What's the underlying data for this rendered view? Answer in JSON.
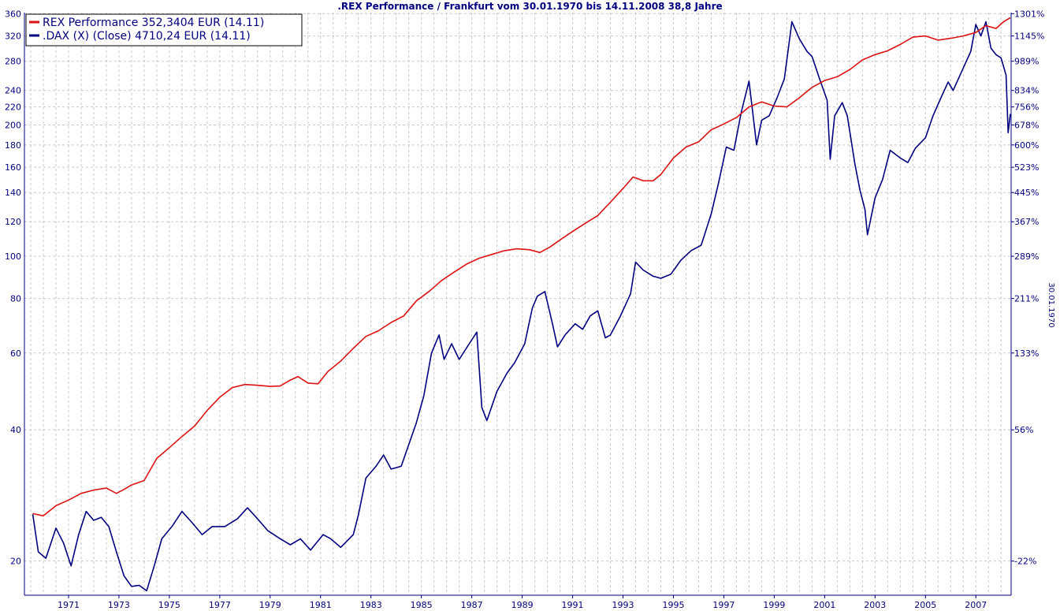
{
  "chart_data": {
    "type": "line",
    "title": ".REX Performance / Frankfurt vom 30.01.1970 bis 14.11.2008 38,8 Jahre",
    "right_axis_label": "30.01.1970",
    "y_scale": "log",
    "ylim": [
      16.7,
      362
    ],
    "xlim": [
      1969.75,
      2008.9
    ],
    "grid": true,
    "legend_position": "top-left",
    "y_ticks_left": [
      "360",
      "320",
      "280",
      "240",
      "220",
      "200",
      "180",
      "160",
      "140",
      "120",
      "100",
      "80",
      "60",
      "40",
      "20"
    ],
    "y_ticks_right": [
      "1301%",
      "1145%",
      "989%",
      "834%",
      "756%",
      "678%",
      "600%",
      "523%",
      "445%",
      "367%",
      "289%",
      "211%",
      "133%",
      "56%",
      "-22%"
    ],
    "x_ticks": [
      "1971",
      "1973",
      "1975",
      "1977",
      "1979",
      "1981",
      "1983",
      "1985",
      "1987",
      "1989",
      "1991",
      "1993",
      "1995",
      "1997",
      "1999",
      "2001",
      "2003",
      "2005",
      "2007"
    ],
    "series": [
      {
        "name": "REX Performance 352,3404 EUR (14.11)",
        "color": "#dd1111",
        "points": [
          [
            1970.08,
            25.7
          ],
          [
            1970.5,
            25.4
          ],
          [
            1971.0,
            26.8
          ],
          [
            1971.5,
            27.6
          ],
          [
            1972.0,
            28.6
          ],
          [
            1972.5,
            29.1
          ],
          [
            1973.0,
            29.4
          ],
          [
            1973.4,
            28.6
          ],
          [
            1973.7,
            29.2
          ],
          [
            1974.0,
            29.9
          ],
          [
            1974.5,
            30.6
          ],
          [
            1975.0,
            34.4
          ],
          [
            1975.5,
            36.4
          ],
          [
            1976.0,
            38.6
          ],
          [
            1976.5,
            40.8
          ],
          [
            1977.0,
            44.3
          ],
          [
            1977.5,
            47.5
          ],
          [
            1978.0,
            50.0
          ],
          [
            1978.5,
            50.8
          ],
          [
            1979.0,
            50.6
          ],
          [
            1979.5,
            50.3
          ],
          [
            1979.9,
            50.4
          ],
          [
            1980.3,
            52.0
          ],
          [
            1980.6,
            53.0
          ],
          [
            1981.0,
            51.2
          ],
          [
            1981.4,
            51.0
          ],
          [
            1981.8,
            54.5
          ],
          [
            1982.3,
            57.5
          ],
          [
            1982.8,
            61.5
          ],
          [
            1983.3,
            65.5
          ],
          [
            1983.8,
            67.5
          ],
          [
            1984.3,
            70.5
          ],
          [
            1984.8,
            73.0
          ],
          [
            1985.3,
            79.0
          ],
          [
            1985.8,
            83.0
          ],
          [
            1986.3,
            88.0
          ],
          [
            1986.8,
            92.0
          ],
          [
            1987.3,
            96.0
          ],
          [
            1987.8,
            99.0
          ],
          [
            1988.3,
            101.0
          ],
          [
            1988.8,
            103.0
          ],
          [
            1989.3,
            104.0
          ],
          [
            1989.8,
            103.5
          ],
          [
            1990.2,
            102.0
          ],
          [
            1990.6,
            105.0
          ],
          [
            1991.0,
            109.0
          ],
          [
            1991.5,
            114.0
          ],
          [
            1992.0,
            119.0
          ],
          [
            1992.5,
            124.0
          ],
          [
            1993.0,
            133.0
          ],
          [
            1993.5,
            143.0
          ],
          [
            1993.9,
            152.0
          ],
          [
            1994.3,
            149.0
          ],
          [
            1994.7,
            149.0
          ],
          [
            1995.0,
            154.0
          ],
          [
            1995.5,
            168.0
          ],
          [
            1996.0,
            178.0
          ],
          [
            1996.5,
            183.0
          ],
          [
            1997.0,
            195.0
          ],
          [
            1997.5,
            201.0
          ],
          [
            1998.0,
            208.0
          ],
          [
            1998.5,
            220.0
          ],
          [
            1999.0,
            226.0
          ],
          [
            1999.5,
            221.0
          ],
          [
            2000.0,
            220.0
          ],
          [
            2000.5,
            231.0
          ],
          [
            2001.0,
            244.0
          ],
          [
            2001.5,
            253.0
          ],
          [
            2002.0,
            258.0
          ],
          [
            2002.5,
            268.0
          ],
          [
            2003.0,
            282.0
          ],
          [
            2003.5,
            290.0
          ],
          [
            2004.0,
            296.0
          ],
          [
            2004.5,
            306.0
          ],
          [
            2005.0,
            318.0
          ],
          [
            2005.5,
            320.0
          ],
          [
            2006.0,
            313.0
          ],
          [
            2006.5,
            316.0
          ],
          [
            2007.0,
            320.0
          ],
          [
            2007.5,
            326.0
          ],
          [
            2007.9,
            338.0
          ],
          [
            2008.3,
            333.0
          ],
          [
            2008.6,
            345.0
          ],
          [
            2008.87,
            352.3
          ]
        ]
      },
      {
        "name": ".DAX (X) (Close) 4710,24 EUR (14.11)",
        "color": "#000080",
        "points": [
          [
            1970.08,
            25.6
          ],
          [
            1970.3,
            21.0
          ],
          [
            1970.6,
            20.3
          ],
          [
            1971.0,
            23.8
          ],
          [
            1971.3,
            22.0
          ],
          [
            1971.6,
            19.5
          ],
          [
            1971.9,
            23.0
          ],
          [
            1972.2,
            26.0
          ],
          [
            1972.5,
            24.8
          ],
          [
            1972.8,
            25.2
          ],
          [
            1973.1,
            24.0
          ],
          [
            1973.4,
            21.0
          ],
          [
            1973.7,
            18.5
          ],
          [
            1974.0,
            17.5
          ],
          [
            1974.3,
            17.6
          ],
          [
            1974.6,
            17.1
          ],
          [
            1974.9,
            19.5
          ],
          [
            1975.2,
            22.5
          ],
          [
            1975.6,
            24.0
          ],
          [
            1976.0,
            26.0
          ],
          [
            1976.4,
            24.5
          ],
          [
            1976.8,
            23.0
          ],
          [
            1977.2,
            24.0
          ],
          [
            1977.7,
            24.0
          ],
          [
            1978.2,
            25.0
          ],
          [
            1978.6,
            26.5
          ],
          [
            1979.0,
            25.0
          ],
          [
            1979.4,
            23.5
          ],
          [
            1979.9,
            22.5
          ],
          [
            1980.3,
            21.8
          ],
          [
            1980.7,
            22.5
          ],
          [
            1981.1,
            21.2
          ],
          [
            1981.6,
            23.0
          ],
          [
            1981.9,
            22.5
          ],
          [
            1982.3,
            21.5
          ],
          [
            1982.8,
            23.0
          ],
          [
            1983.0,
            25.5
          ],
          [
            1983.3,
            31.0
          ],
          [
            1983.7,
            33.0
          ],
          [
            1984.0,
            35.0
          ],
          [
            1984.3,
            32.5
          ],
          [
            1984.7,
            33.0
          ],
          [
            1985.0,
            37.0
          ],
          [
            1985.3,
            41.5
          ],
          [
            1985.6,
            48.0
          ],
          [
            1985.9,
            60.0
          ],
          [
            1986.2,
            66.0
          ],
          [
            1986.4,
            58.0
          ],
          [
            1986.7,
            63.0
          ],
          [
            1987.0,
            58.0
          ],
          [
            1987.4,
            63.0
          ],
          [
            1987.7,
            67.0
          ],
          [
            1987.9,
            45.0
          ],
          [
            1988.1,
            42.0
          ],
          [
            1988.5,
            49.0
          ],
          [
            1988.9,
            54.0
          ],
          [
            1989.2,
            57.0
          ],
          [
            1989.6,
            63.0
          ],
          [
            1989.9,
            76.0
          ],
          [
            1990.1,
            81.0
          ],
          [
            1990.4,
            83.0
          ],
          [
            1990.7,
            70.0
          ],
          [
            1990.9,
            62.0
          ],
          [
            1991.2,
            66.0
          ],
          [
            1991.6,
            70.0
          ],
          [
            1991.9,
            68.0
          ],
          [
            1992.2,
            73.0
          ],
          [
            1992.5,
            75.0
          ],
          [
            1992.8,
            65.0
          ],
          [
            1993.0,
            66.0
          ],
          [
            1993.4,
            73.0
          ],
          [
            1993.8,
            82.0
          ],
          [
            1994.0,
            97.0
          ],
          [
            1994.3,
            93.0
          ],
          [
            1994.7,
            90.0
          ],
          [
            1995.0,
            89.0
          ],
          [
            1995.4,
            91.0
          ],
          [
            1995.8,
            98.0
          ],
          [
            1996.2,
            103.0
          ],
          [
            1996.6,
            106.0
          ],
          [
            1997.0,
            125.0
          ],
          [
            1997.3,
            148.0
          ],
          [
            1997.6,
            178.0
          ],
          [
            1997.9,
            175.0
          ],
          [
            1998.2,
            215.0
          ],
          [
            1998.5,
            252.0
          ],
          [
            1998.8,
            180.0
          ],
          [
            1999.0,
            205.0
          ],
          [
            1999.3,
            210.0
          ],
          [
            1999.6,
            230.0
          ],
          [
            1999.9,
            255.0
          ],
          [
            2000.2,
            345.0
          ],
          [
            2000.5,
            315.0
          ],
          [
            2000.8,
            295.0
          ],
          [
            2001.0,
            287.0
          ],
          [
            2001.3,
            255.0
          ],
          [
            2001.6,
            228.0
          ],
          [
            2001.72,
            167.0
          ],
          [
            2001.9,
            210.0
          ],
          [
            2002.2,
            225.0
          ],
          [
            2002.4,
            210.0
          ],
          [
            2002.7,
            163.0
          ],
          [
            2002.9,
            142.0
          ],
          [
            2003.1,
            128.0
          ],
          [
            2003.2,
            112.0
          ],
          [
            2003.5,
            136.0
          ],
          [
            2003.8,
            150.0
          ],
          [
            2004.1,
            175.0
          ],
          [
            2004.5,
            168.0
          ],
          [
            2004.8,
            164.0
          ],
          [
            2005.1,
            177.0
          ],
          [
            2005.5,
            187.0
          ],
          [
            2005.8,
            210.0
          ],
          [
            2006.1,
            230.0
          ],
          [
            2006.4,
            251.0
          ],
          [
            2006.6,
            240.0
          ],
          [
            2007.0,
            270.0
          ],
          [
            2007.3,
            295.0
          ],
          [
            2007.5,
            340.0
          ],
          [
            2007.7,
            320.0
          ],
          [
            2007.9,
            345.0
          ],
          [
            2008.1,
            300.0
          ],
          [
            2008.3,
            290.0
          ],
          [
            2008.5,
            285.0
          ],
          [
            2008.7,
            260.0
          ],
          [
            2008.78,
            192.0
          ],
          [
            2008.87,
            212.0
          ]
        ]
      }
    ]
  }
}
